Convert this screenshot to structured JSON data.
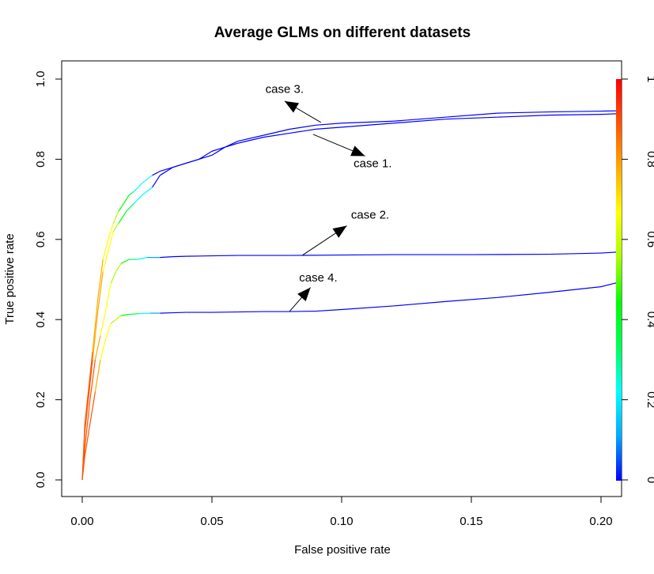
{
  "chart_data": {
    "type": "line",
    "title": "Average GLMs on different datasets",
    "xlabel": "False positive rate",
    "ylabel": "True positive rate",
    "xlim": [
      0,
      0.2
    ],
    "ylim": [
      0,
      1
    ],
    "x_ticks": [
      "0.00",
      "0.05",
      "0.10",
      "0.15",
      "0.20"
    ],
    "y_ticks": [
      "0.0",
      "0.2",
      "0.4",
      "0.6",
      "0.8",
      "1.0"
    ],
    "colorbar_ticks": [
      "0",
      "0.2",
      "0.4",
      "0.6",
      "0.8",
      "1"
    ],
    "colorbar_colors": [
      "#0000ff",
      "#00aaff",
      "#00ffff",
      "#00ff55",
      "#00ff00",
      "#aaff00",
      "#ffff00",
      "#ffaa00",
      "#ff5500",
      "#ff0000"
    ],
    "grid": false,
    "series": [
      {
        "x": [
          0,
          0.001,
          0.002,
          0.004,
          0.006,
          0.008,
          0.01,
          0.012,
          0.014,
          0.017,
          0.02,
          0.023,
          0.027,
          0.03,
          0.035,
          0.04,
          0.045,
          0.05,
          0.055,
          0.06,
          0.07,
          0.08,
          0.09,
          0.1,
          0.12,
          0.14,
          0.16,
          0.18,
          0.2,
          0.208
        ],
        "y": [
          0,
          0.12,
          0.18,
          0.3,
          0.42,
          0.52,
          0.57,
          0.62,
          0.64,
          0.67,
          0.69,
          0.71,
          0.73,
          0.76,
          0.78,
          0.79,
          0.8,
          0.81,
          0.83,
          0.84,
          0.855,
          0.865,
          0.875,
          0.88,
          0.89,
          0.9,
          0.905,
          0.91,
          0.912,
          0.914
        ],
        "annotation": "case 1."
      },
      {
        "x": [
          0,
          0.001,
          0.003,
          0.005,
          0.007,
          0.009,
          0.011,
          0.013,
          0.015,
          0.018,
          0.021,
          0.025,
          0.03,
          0.035,
          0.04,
          0.05,
          0.06,
          0.08,
          0.1,
          0.12,
          0.15,
          0.18,
          0.2,
          0.208
        ],
        "y": [
          0,
          0.08,
          0.2,
          0.3,
          0.36,
          0.42,
          0.49,
          0.52,
          0.54,
          0.55,
          0.55,
          0.555,
          0.555,
          0.557,
          0.558,
          0.559,
          0.56,
          0.56,
          0.561,
          0.562,
          0.562,
          0.563,
          0.566,
          0.569
        ],
        "annotation": "case 2."
      },
      {
        "x": [
          0,
          0.001,
          0.002,
          0.004,
          0.006,
          0.008,
          0.01,
          0.012,
          0.014,
          0.016,
          0.018,
          0.02,
          0.023,
          0.027,
          0.03,
          0.035,
          0.04,
          0.045,
          0.05,
          0.055,
          0.06,
          0.07,
          0.08,
          0.09,
          0.1,
          0.12,
          0.14,
          0.16,
          0.18,
          0.2,
          0.208
        ],
        "y": [
          0,
          0.14,
          0.2,
          0.32,
          0.45,
          0.55,
          0.6,
          0.64,
          0.67,
          0.69,
          0.71,
          0.72,
          0.74,
          0.76,
          0.77,
          0.78,
          0.79,
          0.8,
          0.82,
          0.83,
          0.845,
          0.86,
          0.875,
          0.885,
          0.89,
          0.895,
          0.905,
          0.915,
          0.918,
          0.92,
          0.921
        ],
        "annotation": "case 3."
      },
      {
        "x": [
          0,
          0.001,
          0.003,
          0.005,
          0.007,
          0.009,
          0.011,
          0.013,
          0.015,
          0.018,
          0.022,
          0.026,
          0.03,
          0.035,
          0.04,
          0.05,
          0.06,
          0.07,
          0.08,
          0.09,
          0.1,
          0.12,
          0.14,
          0.16,
          0.18,
          0.2,
          0.208
        ],
        "y": [
          0,
          0.06,
          0.14,
          0.22,
          0.3,
          0.35,
          0.39,
          0.4,
          0.41,
          0.413,
          0.415,
          0.416,
          0.416,
          0.417,
          0.418,
          0.418,
          0.419,
          0.42,
          0.42,
          0.421,
          0.425,
          0.434,
          0.445,
          0.455,
          0.468,
          0.482,
          0.495
        ],
        "annotation": "case 4."
      }
    ],
    "annotations": [
      {
        "label": "case 3.",
        "text_x": 0.078,
        "text_y": 0.975,
        "arrow_from_x": 0.092,
        "arrow_from_y": 0.892,
        "arrow_to_x": 0.078,
        "arrow_to_y": 0.945
      },
      {
        "label": "case 1.",
        "text_x": 0.112,
        "text_y": 0.79,
        "arrow_from_x": 0.089,
        "arrow_from_y": 0.862,
        "arrow_to_x": 0.109,
        "arrow_to_y": 0.808
      },
      {
        "label": "case 2.",
        "text_x": 0.111,
        "text_y": 0.662,
        "arrow_from_x": 0.085,
        "arrow_from_y": 0.561,
        "arrow_to_x": 0.102,
        "arrow_to_y": 0.634
      },
      {
        "label": "case 4.",
        "text_x": 0.091,
        "text_y": 0.505,
        "arrow_from_x": 0.08,
        "arrow_from_y": 0.421,
        "arrow_to_x": 0.088,
        "arrow_to_y": 0.48
      }
    ]
  }
}
